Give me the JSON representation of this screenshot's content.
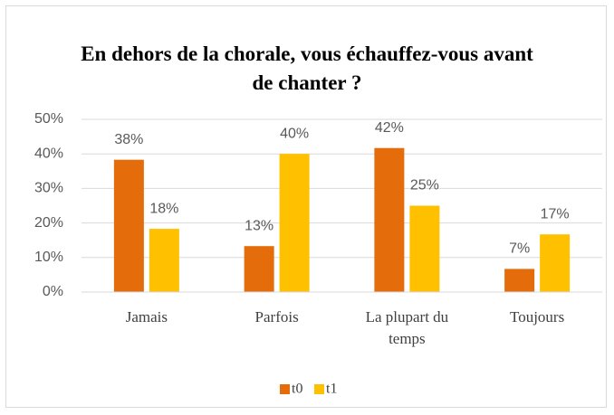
{
  "chart_data": {
    "type": "bar",
    "title": "En dehors de la chorale, vous échauffez-vous avant de chanter ?",
    "categories": [
      "Jamais",
      "Parfois",
      "La plupart du temps",
      "Toujours"
    ],
    "series": [
      {
        "name": "t0",
        "color": "#e46c0a",
        "values": [
          38.3,
          13.3,
          41.7,
          6.7
        ],
        "value_labels": [
          "38%",
          "13%",
          "42%",
          "7%"
        ]
      },
      {
        "name": "t1",
        "color": "#ffc000",
        "values": [
          18.3,
          40,
          25,
          16.7
        ],
        "value_labels": [
          "18%",
          "40%",
          "25%",
          "17%"
        ]
      }
    ],
    "ylim": [
      0,
      50
    ],
    "yticks": [
      {
        "value": 0,
        "label": "0%"
      },
      {
        "value": 10,
        "label": "10%"
      },
      {
        "value": 20,
        "label": "20%"
      },
      {
        "value": 30,
        "label": "30%"
      },
      {
        "value": 40,
        "label": "40%"
      },
      {
        "value": 50,
        "label": "50%"
      }
    ],
    "grid": true,
    "legend": "bottom"
  }
}
